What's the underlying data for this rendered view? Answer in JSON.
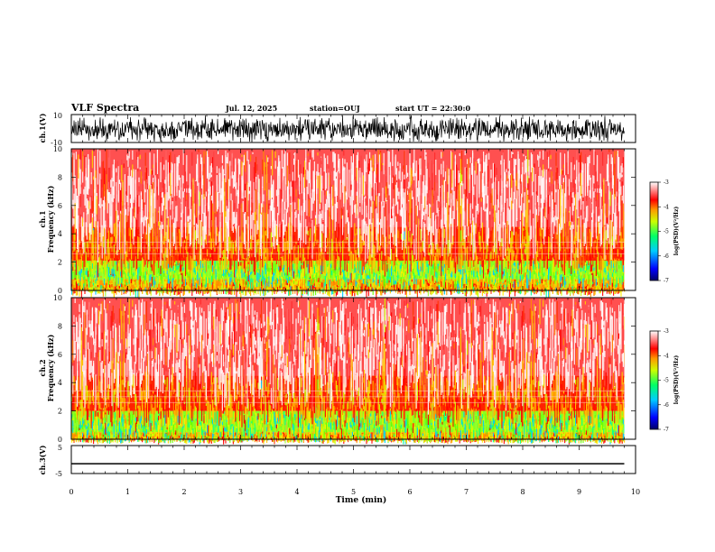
{
  "header": {
    "title": "VLF Spectra",
    "date": "Jul. 12, 2025",
    "station": "station=OUJ",
    "start": "start UT = 22:30:0"
  },
  "colors": {
    "high": "#ff0000",
    "mid": "#ffd400",
    "low_mid": "#7cff00",
    "low": "#00c8ff",
    "lowest": "#0000cc",
    "background": "#ffffff"
  },
  "chart_data": [
    {
      "type": "line",
      "name": "waveform-ch1",
      "ylabel": "ch.1(V)",
      "ylim": [
        -10,
        10
      ],
      "yticks": [
        "10",
        "-10"
      ],
      "xlim": [
        0,
        10
      ]
    },
    {
      "type": "heatmap",
      "name": "spectrogram-ch1",
      "ylabel": "ch.1\nFrequency (kHz)",
      "ylim": [
        0,
        10
      ],
      "yticks": [
        "0",
        "2",
        "4",
        "6",
        "8",
        "10"
      ],
      "xlim": [
        0,
        10
      ],
      "colorbar": {
        "label": "log(PSD)(V²/Hz)",
        "range": [
          -7,
          -3
        ],
        "ticks": [
          "-3",
          "-4",
          "-5",
          "-6",
          "-7"
        ]
      },
      "bands": [
        {
          "from": 0,
          "to": 0.8,
          "level": -4.3
        },
        {
          "from": 0.8,
          "to": 2.1,
          "level": -5.0
        },
        {
          "from": 2.1,
          "to": 4.5,
          "level": -3.9
        },
        {
          "from": 4.5,
          "to": 10,
          "level": -3.2
        }
      ]
    },
    {
      "type": "heatmap",
      "name": "spectrogram-ch2",
      "ylabel": "ch.2\nFrequency (kHz)",
      "ylim": [
        0,
        10
      ],
      "yticks": [
        "0",
        "2",
        "4",
        "6",
        "8",
        "10"
      ],
      "xlim": [
        0,
        10
      ],
      "colorbar": {
        "label": "log(PSD)(V²/Hz)",
        "range": [
          -7,
          -3
        ],
        "ticks": [
          "-3",
          "-4",
          "-5",
          "-6",
          "-7"
        ]
      },
      "bands": [
        {
          "from": 0,
          "to": 0.5,
          "level": -4.3
        },
        {
          "from": 0.5,
          "to": 2.0,
          "level": -4.9
        },
        {
          "from": 2.0,
          "to": 4.5,
          "level": -3.9
        },
        {
          "from": 4.5,
          "to": 10,
          "level": -3.2
        }
      ]
    },
    {
      "type": "line",
      "name": "waveform-ch3",
      "ylabel": "ch.3(V)",
      "ylim": [
        -5,
        5
      ],
      "yticks": [
        "5",
        "-5"
      ],
      "xlim": [
        0,
        10
      ],
      "level": -1.5
    }
  ],
  "xaxis": {
    "label": "Time (min)",
    "ticks": [
      "0",
      "1",
      "2",
      "3",
      "4",
      "5",
      "6",
      "7",
      "8",
      "9",
      "10"
    ],
    "data_end": 9.8
  }
}
